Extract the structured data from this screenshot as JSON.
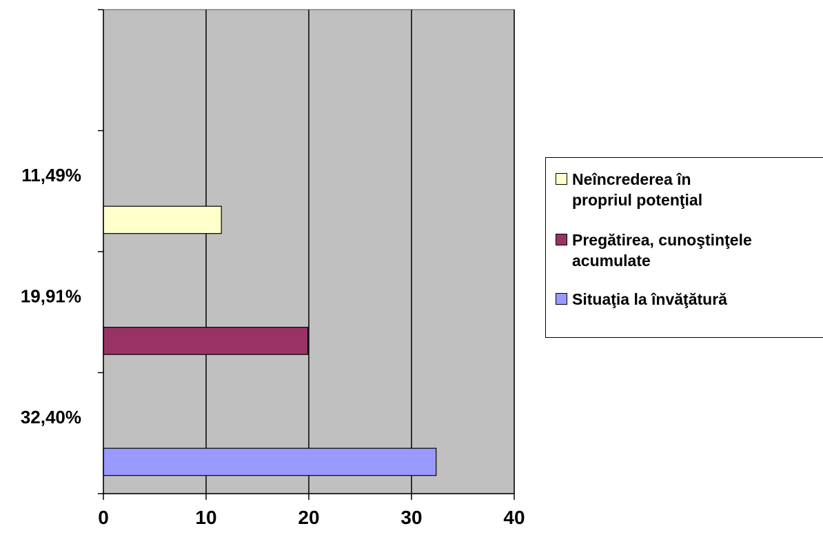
{
  "chart_data": {
    "type": "bar",
    "orientation": "horizontal",
    "categories": [
      "32,40%",
      "19,91%",
      "11,49%"
    ],
    "series": [
      {
        "name": "Situaţia la învăţătură",
        "color": "#9999FF",
        "values": [
          32.4,
          null,
          null
        ]
      },
      {
        "name": "Pregătirea, cunoştinţele acumulate",
        "color": "#993366",
        "values": [
          null,
          19.91,
          null
        ]
      },
      {
        "name": "Neîncrederea în propriul potenţial",
        "color": "#FFFFCC",
        "values": [
          null,
          null,
          11.49
        ]
      }
    ],
    "xlim": [
      0,
      40
    ],
    "xticks": [
      "0",
      "10",
      "20",
      "30",
      "40"
    ],
    "grid": true,
    "plot_background": "#C0C0C0",
    "legend_position": "right"
  },
  "legend": {
    "items": [
      {
        "label_line1": "Neîncrederea în",
        "label_line2": "propriul potenţial",
        "color": "#FFFFCC"
      },
      {
        "label_line1": "Pregătirea, cunoştinţele",
        "label_line2": "acumulate",
        "color": "#993366"
      },
      {
        "label_line1": "Situaţia la învăţătură",
        "label_line2": "",
        "color": "#9999FF"
      }
    ]
  }
}
